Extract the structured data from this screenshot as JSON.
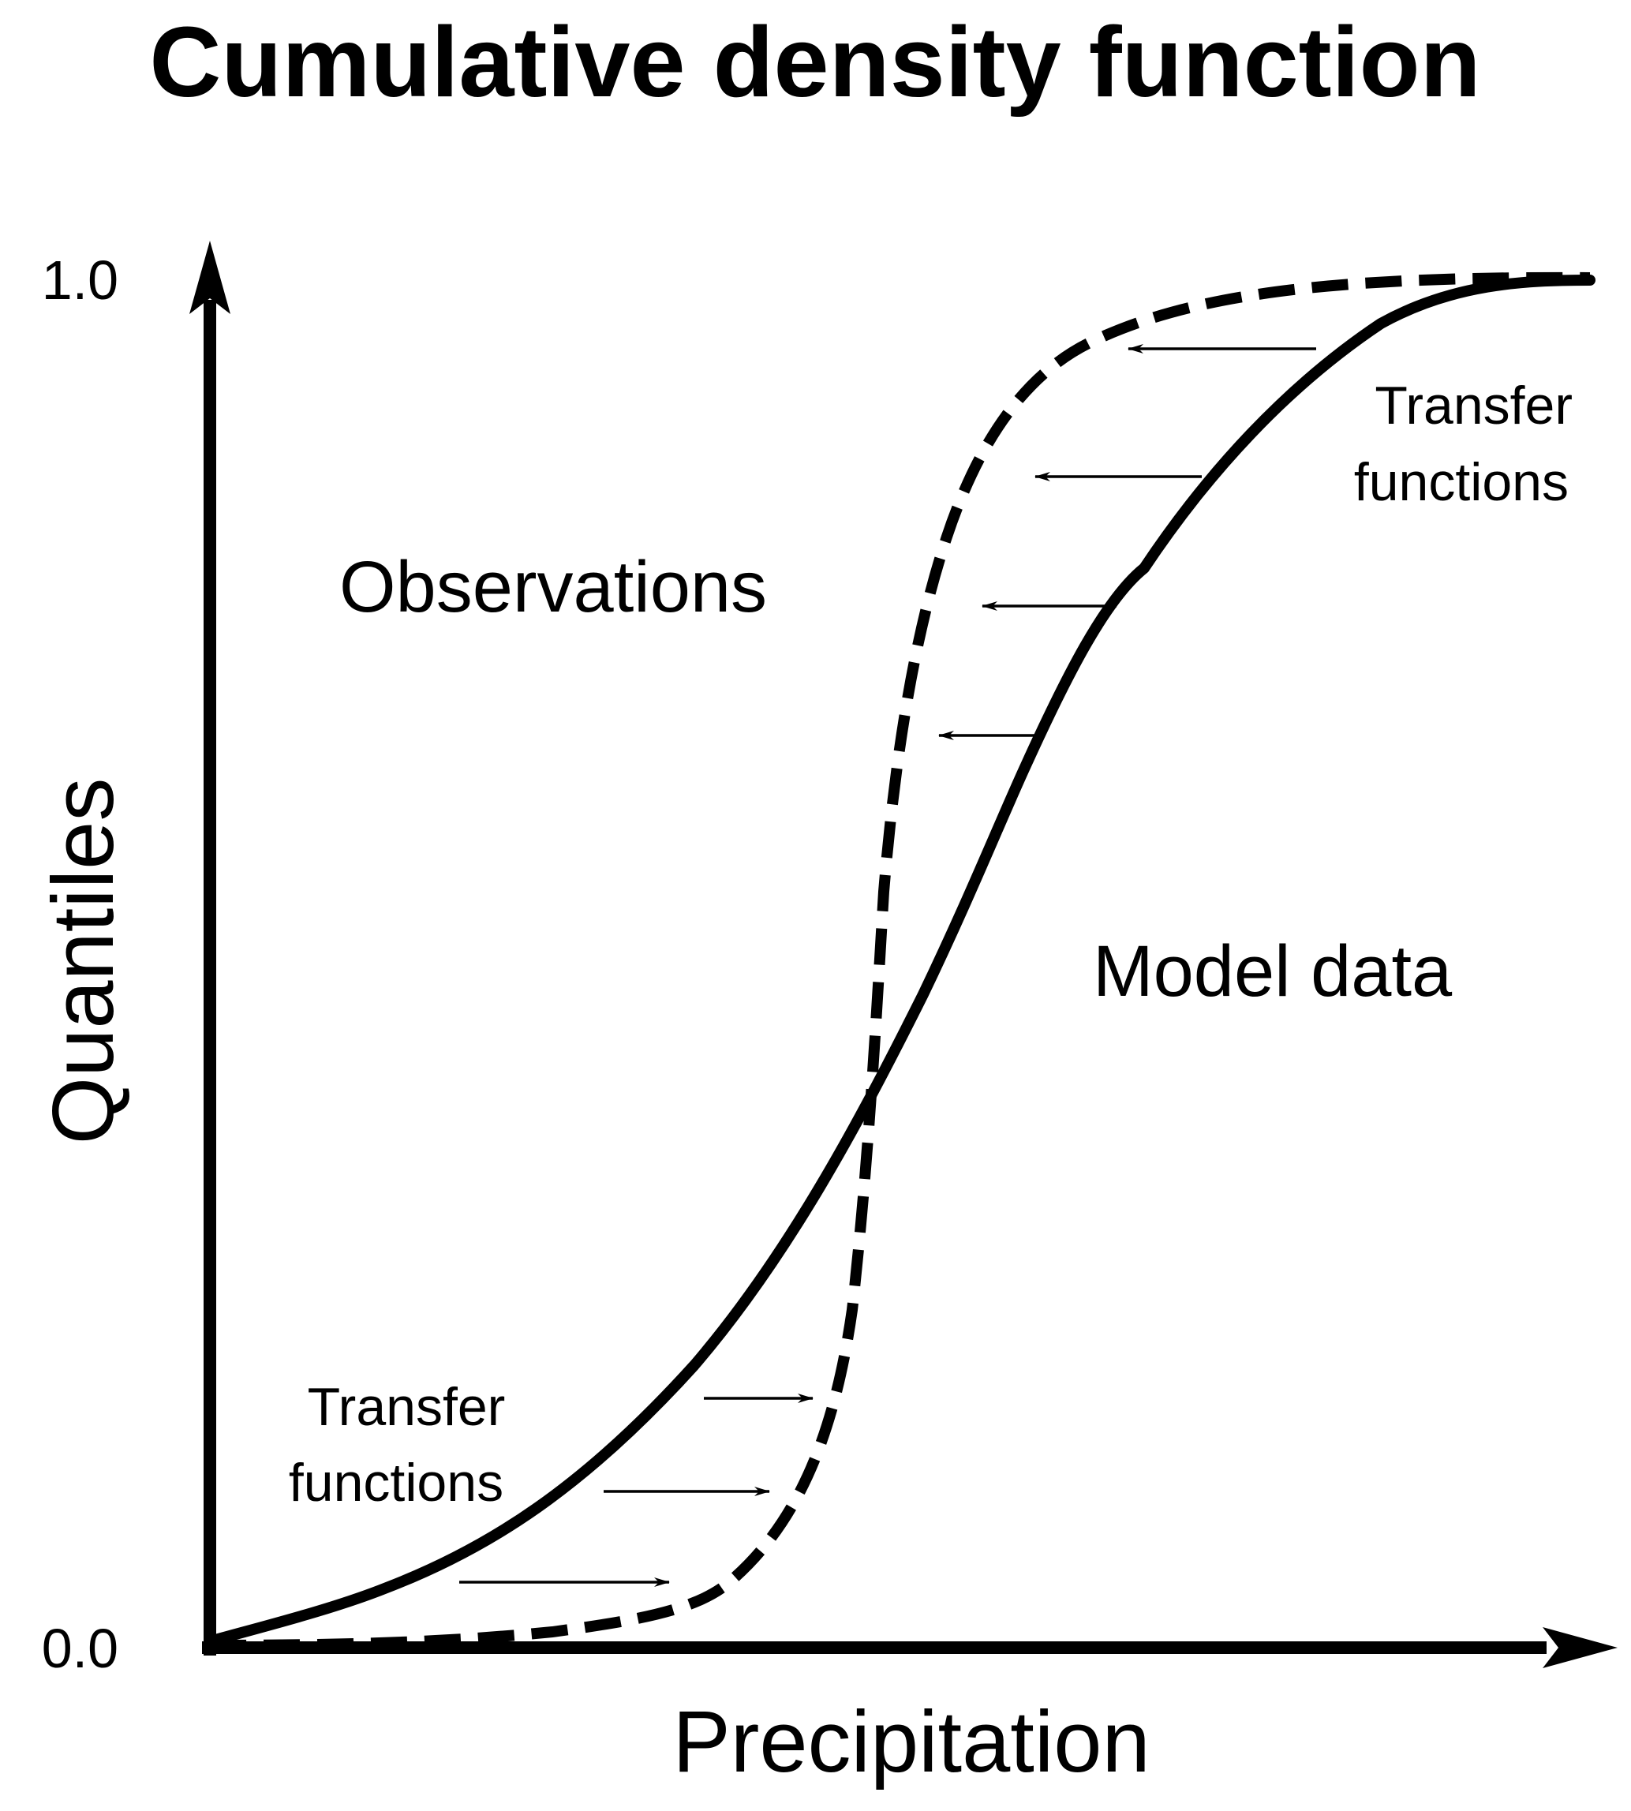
{
  "title": "Cumulative density function",
  "axes": {
    "x_label": "Precipitation",
    "y_label": "Quantiles",
    "y_ticks": [
      "1.0",
      "0.0"
    ]
  },
  "labels": {
    "observations": "Observations",
    "model_data": "Model data",
    "transfer_top": [
      "Transfer",
      "functions"
    ],
    "transfer_bottom": [
      "Transfer",
      "functions"
    ]
  },
  "colors": {
    "ink": "#000000",
    "background": "#ffffff"
  }
}
